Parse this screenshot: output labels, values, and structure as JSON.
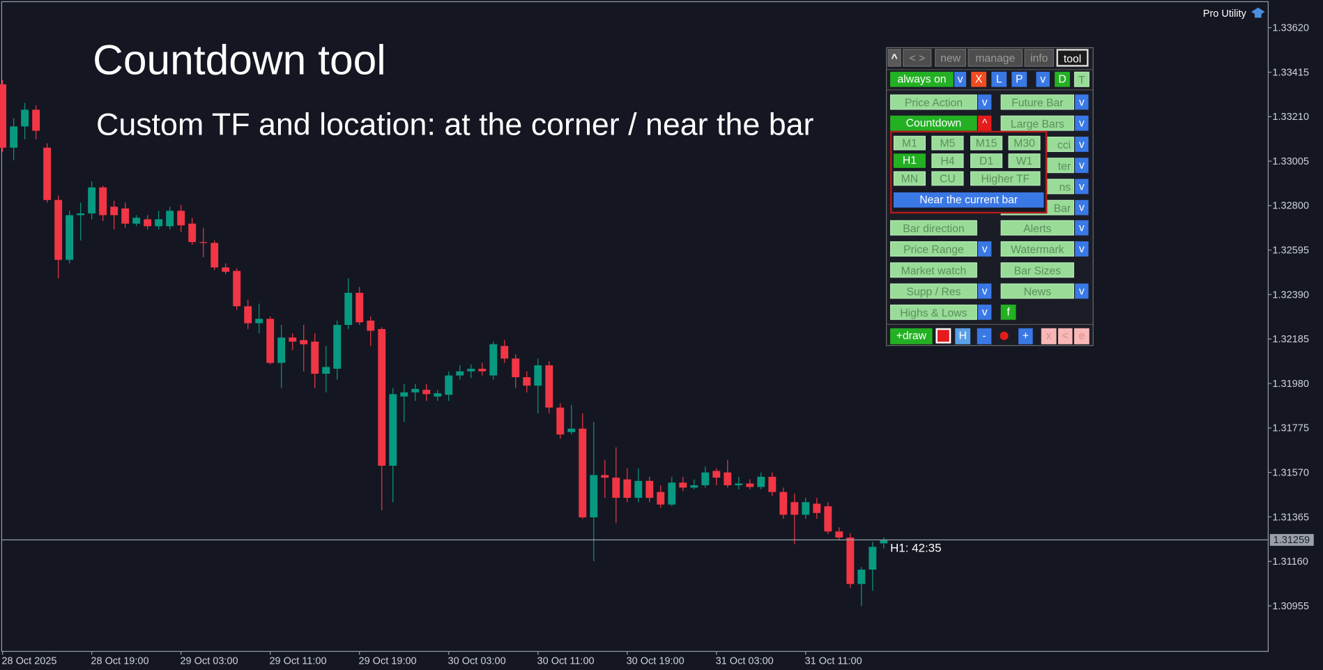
{
  "title": "Countdown tool",
  "subtitle": "Custom TF and location: at the corner / near the bar",
  "watermark": "Pro Utility",
  "countdown_label": "H1: 42:35",
  "chart_data": {
    "type": "candlestick",
    "categories": [
      "28 Oct 2025",
      null,
      null,
      null,
      null,
      null,
      null,
      null,
      "28 Oct 19:00",
      null,
      null,
      null,
      null,
      null,
      null,
      null,
      "29 Oct 03:00",
      null,
      null,
      null,
      null,
      null,
      null,
      null,
      "29 Oct 11:00",
      null,
      null,
      null,
      null,
      null,
      null,
      null,
      "29 Oct 19:00",
      null,
      null,
      null,
      null,
      null,
      null,
      null,
      "30 Oct 03:00",
      null,
      null,
      null,
      null,
      null,
      null,
      null,
      "30 Oct 11:00",
      null,
      null,
      null,
      null,
      null,
      null,
      null,
      "30 Oct 19:00",
      null,
      null,
      null,
      null,
      null,
      null,
      null,
      "31 Oct 03:00",
      null,
      null,
      null,
      null,
      null,
      null,
      null,
      "31 Oct 11:00",
      null,
      null,
      null,
      null,
      null,
      null,
      null
    ],
    "open": [
      1.33359,
      1.33067,
      1.33165,
      1.33242,
      1.33067,
      1.32826,
      1.3255,
      1.32756,
      1.32764,
      1.32884,
      1.32795,
      1.32787,
      1.32717,
      1.32737,
      1.32705,
      1.32705,
      1.32776,
      1.32717,
      1.32632,
      1.32628,
      1.32515,
      1.32499,
      1.32336,
      1.32258,
      1.32278,
      1.32075,
      1.32192,
      1.3218,
      1.32173,
      1.32025,
      1.32048,
      1.3225,
      1.32398,
      1.3227,
      1.32231,
      1.31601,
      1.3192,
      1.31939,
      1.31951,
      1.3192,
      1.31928,
      1.32017,
      1.32036,
      1.32048,
      1.32017,
      1.32153,
      1.32095,
      1.32009,
      1.3197,
      1.32064,
      1.31869,
      1.31756,
      1.31772,
      1.31363,
      1.31558,
      1.31546,
      1.31538,
      1.31453,
      1.31531,
      1.3148,
      1.31422,
      1.31523,
      1.315,
      1.31511,
      1.31577,
      1.3157,
      1.31511,
      1.31519,
      1.31503,
      1.3155,
      1.3148,
      1.31433,
      1.31375,
      1.31426,
      1.31414,
      1.31298,
      1.3127,
      1.31056,
      1.31122,
      1.31243
    ],
    "high": [
      1.33378,
      1.33203,
      1.33273,
      1.33262,
      1.33087,
      1.32846,
      1.32776,
      1.32814,
      1.32912,
      1.32892,
      1.32822,
      1.32814,
      1.32756,
      1.32756,
      1.32776,
      1.32795,
      1.32803,
      1.32744,
      1.32698,
      1.32639,
      1.32534,
      1.32511,
      1.32367,
      1.32348,
      1.32289,
      1.3225,
      1.32211,
      1.3225,
      1.32211,
      1.32153,
      1.3227,
      1.32464,
      1.32425,
      1.32289,
      1.32239,
      1.31959,
      1.31978,
      1.31978,
      1.31978,
      1.31951,
      1.32036,
      1.32064,
      1.32068,
      1.32075,
      1.32173,
      1.3218,
      1.32114,
      1.32036,
      1.32095,
      1.32083,
      1.31889,
      1.31881,
      1.31842,
      1.31803,
      1.31628,
      1.31686,
      1.31589,
      1.31589,
      1.3155,
      1.31511,
      1.3155,
      1.3155,
      1.31538,
      1.31597,
      1.31589,
      1.31628,
      1.3155,
      1.31538,
      1.3157,
      1.3157,
      1.315,
      1.31472,
      1.31453,
      1.31453,
      1.31433,
      1.31317,
      1.3129,
      1.31134,
      1.31251,
      1.3127
    ],
    "low": [
      1.33048,
      1.33009,
      1.33106,
      1.33106,
      1.32814,
      1.32464,
      1.32534,
      1.32639,
      1.32737,
      1.32729,
      1.3269,
      1.32698,
      1.32705,
      1.3269,
      1.3269,
      1.3269,
      1.32678,
      1.3262,
      1.32562,
      1.32503,
      1.32484,
      1.3232,
      1.32231,
      1.32211,
      1.32068,
      1.31959,
      1.32134,
      1.32036,
      1.31959,
      1.31939,
      1.31998,
      1.32231,
      1.3225,
      1.32153,
      1.31395,
      1.31433,
      1.31803,
      1.319,
      1.319,
      1.319,
      1.319,
      1.31998,
      1.32005,
      1.32017,
      1.31998,
      1.32075,
      1.31959,
      1.31939,
      1.31842,
      1.31842,
      1.31725,
      1.31745,
      1.31356,
      1.31161,
      1.31453,
      1.31336,
      1.31433,
      1.31433,
      1.31433,
      1.31406,
      1.31414,
      1.31484,
      1.31492,
      1.315,
      1.31511,
      1.315,
      1.31492,
      1.31492,
      1.31492,
      1.31461,
      1.31356,
      1.31239,
      1.31356,
      1.31356,
      1.31286,
      1.31258,
      1.31037,
      1.30955,
      1.31025,
      1.3122
    ],
    "close": [
      1.33067,
      1.33165,
      1.33242,
      1.33145,
      1.32826,
      1.3255,
      1.32756,
      1.32764,
      1.32884,
      1.32756,
      1.32756,
      1.32717,
      1.32744,
      1.32705,
      1.32737,
      1.32776,
      1.32709,
      1.32632,
      1.32628,
      1.32515,
      1.32495,
      1.32336,
      1.32258,
      1.32278,
      1.32075,
      1.32192,
      1.32173,
      1.32161,
      1.32025,
      1.32056,
      1.3225,
      1.32398,
      1.32262,
      1.32223,
      1.31601,
      1.31931,
      1.31939,
      1.31955,
      1.31931,
      1.31935,
      1.32017,
      1.32036,
      1.32048,
      1.32036,
      1.32161,
      1.32095,
      1.32009,
      1.3197,
      1.32064,
      1.31869,
      1.31745,
      1.31772,
      1.31363,
      1.31558,
      1.31546,
      1.31453,
      1.31453,
      1.31531,
      1.31453,
      1.31422,
      1.31523,
      1.315,
      1.31511,
      1.3157,
      1.31546,
      1.31511,
      1.31519,
      1.31503,
      1.3155,
      1.3148,
      1.31375,
      1.31375,
      1.31433,
      1.31383,
      1.31298,
      1.3127,
      1.31056,
      1.31122,
      1.31227,
      1.31259
    ],
    "up_color": "#089981",
    "down_color": "#f23645",
    "ylim": [
      1.30745,
      1.3374
    ],
    "yticks": [
      {
        "value": 1.3362,
        "label": "1.33620"
      },
      {
        "value": 1.33415,
        "label": "1.33415"
      },
      {
        "value": 1.3321,
        "label": "1.33210"
      },
      {
        "value": 1.33005,
        "label": "1.33005"
      },
      {
        "value": 1.328,
        "label": "1.32800"
      },
      {
        "value": 1.32595,
        "label": "1.32595"
      },
      {
        "value": 1.3239,
        "label": "1.32390"
      },
      {
        "value": 1.32185,
        "label": "1.32185"
      },
      {
        "value": 1.3198,
        "label": "1.31980"
      },
      {
        "value": 1.31775,
        "label": "1.31775"
      },
      {
        "value": 1.3157,
        "label": "1.31570"
      },
      {
        "value": 1.31365,
        "label": "1.31365"
      },
      {
        "value": 1.3116,
        "label": "1.31160"
      },
      {
        "value": 1.30955,
        "label": "1.30955"
      }
    ],
    "last_price": 1.31259,
    "grid": false
  },
  "panel": {
    "tabs": [
      "^",
      "< >",
      "new",
      "manage",
      "info",
      "tool"
    ],
    "toolbar": [
      "always on",
      "v",
      "X",
      "L",
      "P",
      "v",
      "D",
      "T"
    ],
    "tools_left": [
      {
        "label": "Price Action",
        "arrow": "v"
      },
      {
        "label": "Countdown",
        "arrow": "^"
      },
      {
        "label": "Bar direction"
      },
      {
        "label": "Price Range",
        "arrow": "v"
      },
      {
        "label": "Market watch"
      },
      {
        "label": "Supp / Res",
        "arrow": "v"
      },
      {
        "label": "Highs & Lows",
        "arrow": "v"
      }
    ],
    "tools_right": [
      {
        "label": "Future Bar",
        "arrow": "v"
      },
      {
        "label": "Large Bars",
        "arrow": "v"
      },
      {
        "label": "cci",
        "arrow": "v"
      },
      {
        "label": "ter",
        "arrow": "v"
      },
      {
        "label": "ns",
        "arrow": "v"
      },
      {
        "label": "Bar",
        "arrow": "v"
      },
      {
        "label": "Alerts",
        "arrow": "v"
      },
      {
        "label": "Watermark",
        "arrow": "v"
      },
      {
        "label": "Bar Sizes"
      },
      {
        "label": "News",
        "arrow": "v"
      },
      {
        "label": "f"
      }
    ],
    "timeframes": [
      "M1",
      "M5",
      "M15",
      "M30",
      "H1",
      "H4",
      "D1",
      "W1",
      "MN",
      "CU",
      "Higher TF"
    ],
    "location": "Near the current bar",
    "bottom": [
      "+draw",
      "H",
      "-",
      "+",
      "x",
      "<",
      "e"
    ]
  }
}
